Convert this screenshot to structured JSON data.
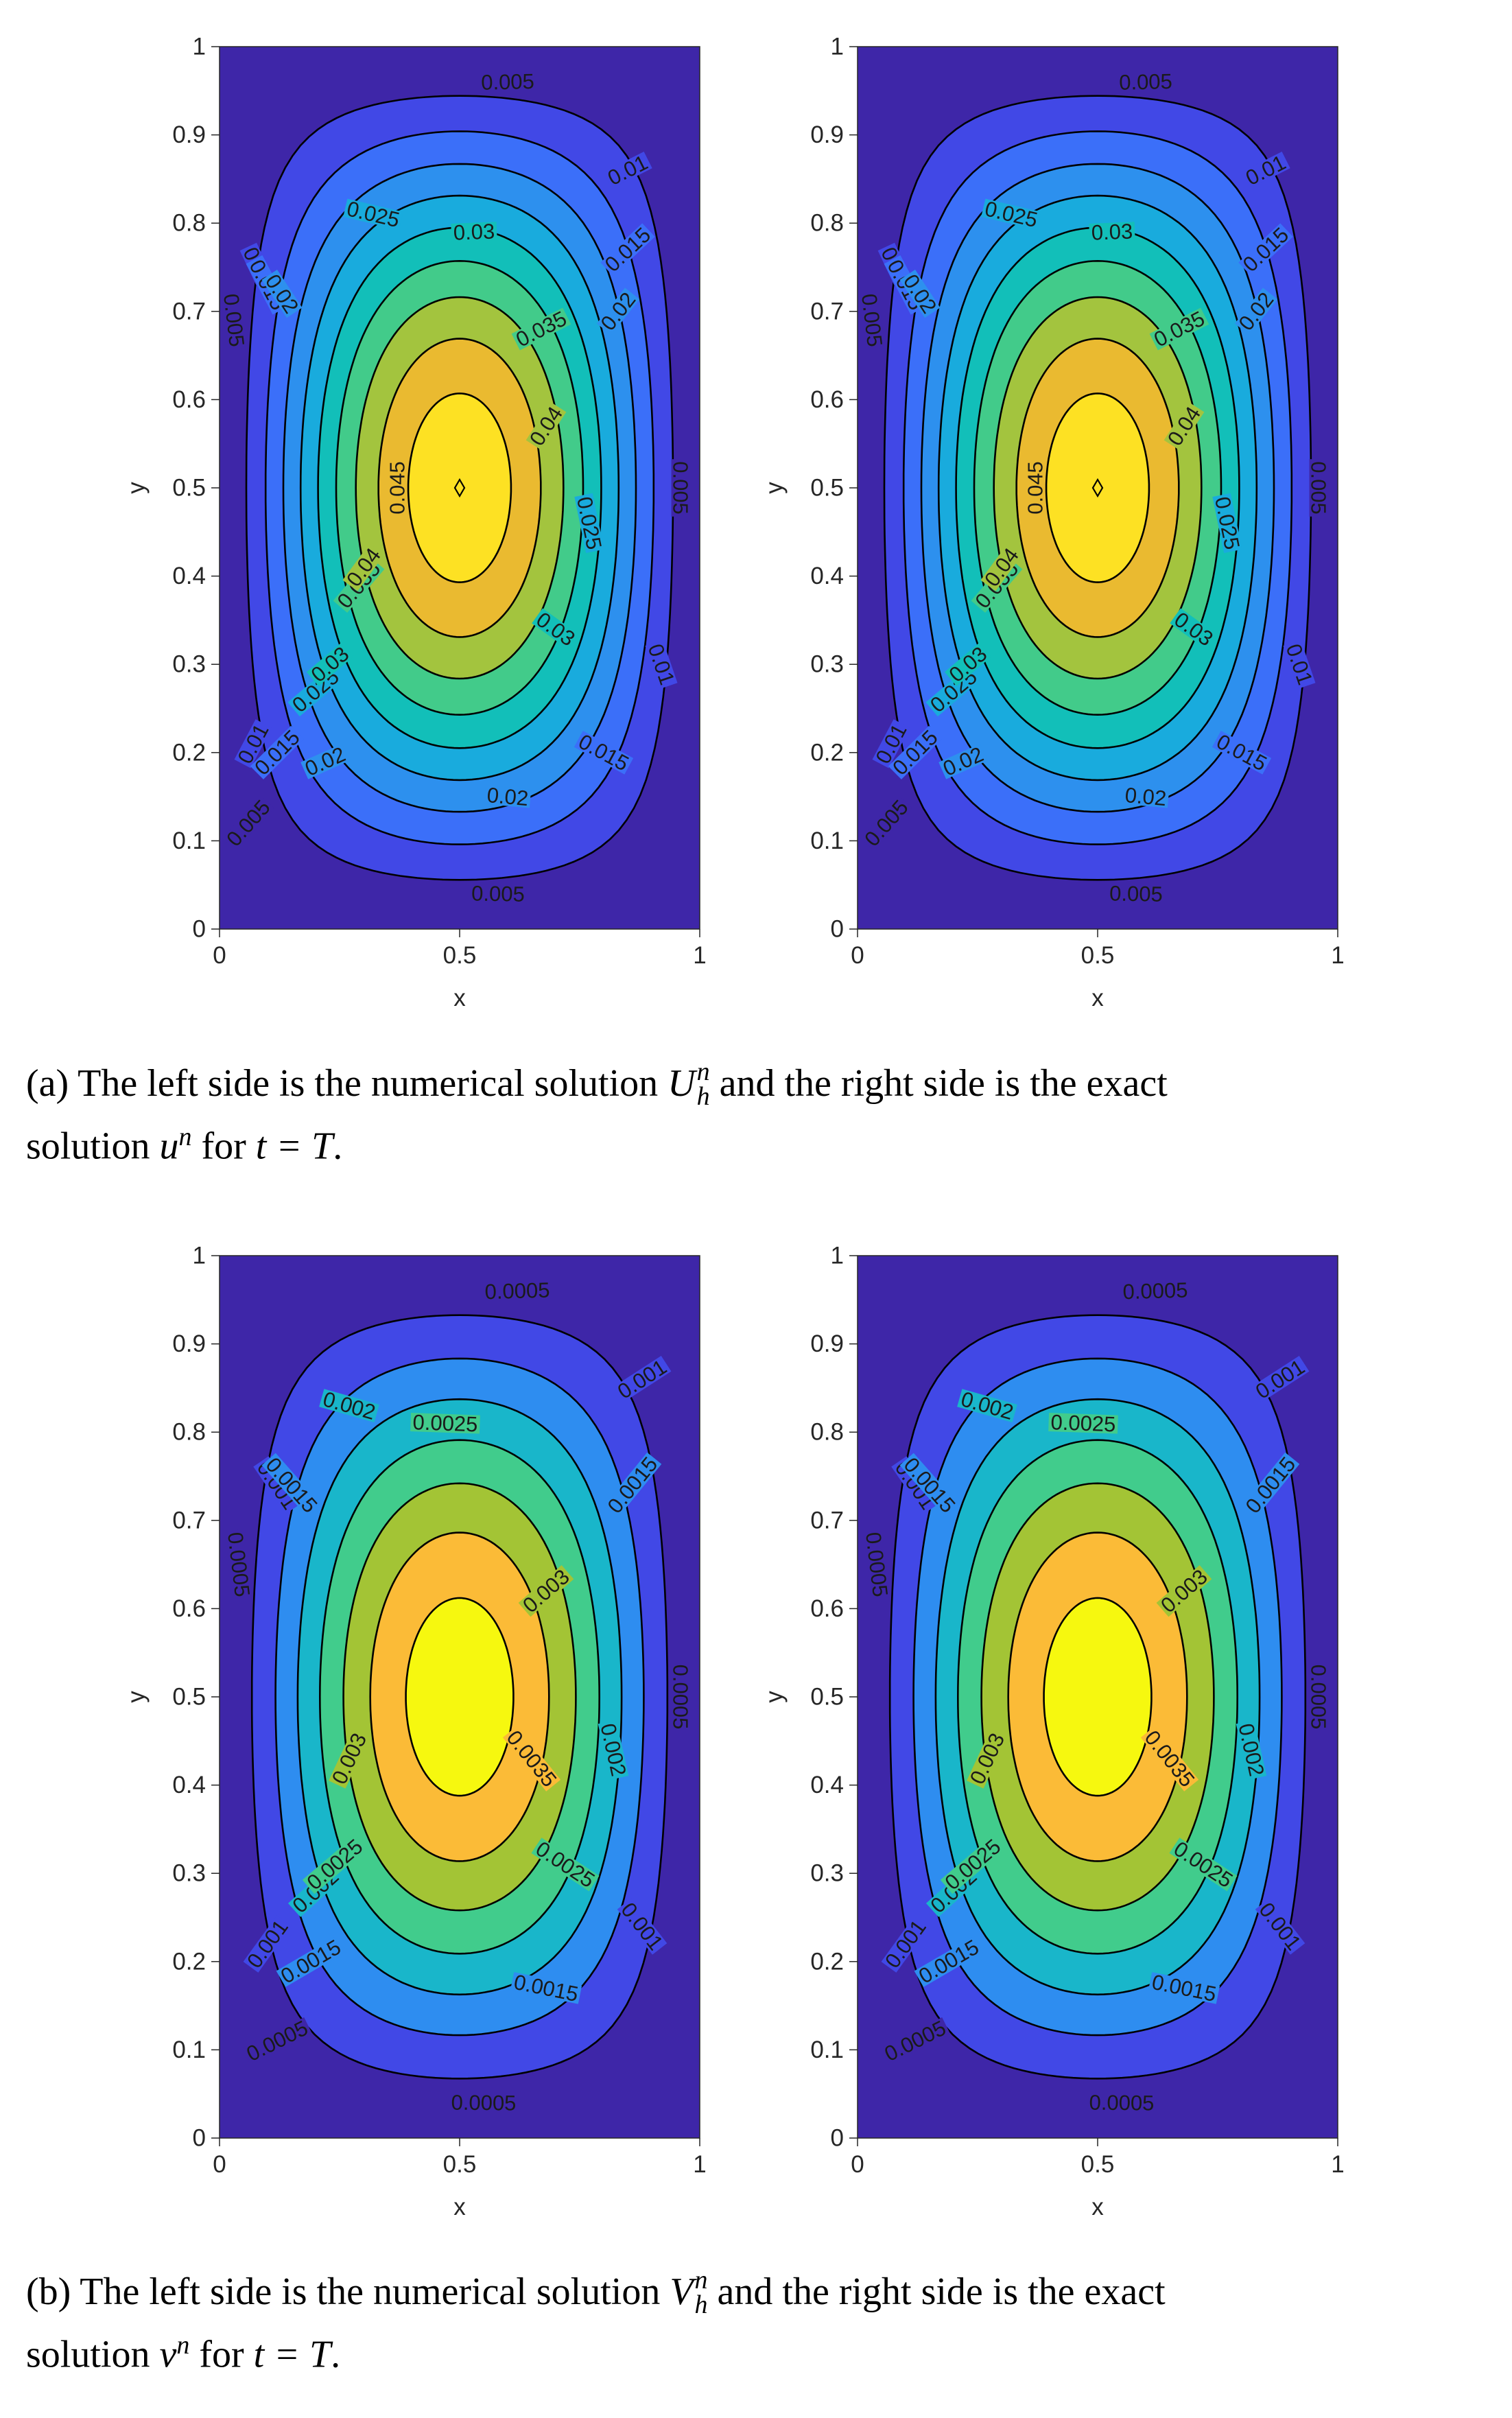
{
  "chart_data": [
    {
      "type": "contour",
      "panel": "a-left",
      "xlabel": "x",
      "ylabel": "y",
      "xlim": [
        0,
        1
      ],
      "ylim": [
        0,
        1
      ],
      "xticks": [
        "0",
        "0.5",
        "1"
      ],
      "yticks": [
        "0",
        "0.1",
        "0.2",
        "0.3",
        "0.4",
        "0.5",
        "0.6",
        "0.7",
        "0.8",
        "0.9",
        "1"
      ],
      "max_value": 0.0485,
      "levels": [
        0.005,
        0.01,
        0.015,
        0.02,
        0.025,
        0.03,
        0.035,
        0.04,
        0.045
      ],
      "level_labels": [
        "0.005",
        "0.01",
        "0.015",
        "0.02",
        "0.025",
        "0.03",
        "0.035",
        "0.04",
        "0.045"
      ],
      "maximum_marker": [
        0.5,
        0.5
      ],
      "grid": false
    },
    {
      "type": "contour",
      "panel": "a-right",
      "xlabel": "x",
      "ylabel": "y",
      "xlim": [
        0,
        1
      ],
      "ylim": [
        0,
        1
      ],
      "xticks": [
        "0",
        "0.5",
        "1"
      ],
      "yticks": [
        "0",
        "0.1",
        "0.2",
        "0.3",
        "0.4",
        "0.5",
        "0.6",
        "0.7",
        "0.8",
        "0.9",
        "1"
      ],
      "max_value": 0.0485,
      "levels": [
        0.005,
        0.01,
        0.015,
        0.02,
        0.025,
        0.03,
        0.035,
        0.04,
        0.045
      ],
      "level_labels": [
        "0.005",
        "0.01",
        "0.015",
        "0.02",
        "0.025",
        "0.03",
        "0.035",
        "0.04",
        "0.045"
      ],
      "maximum_marker": [
        0.5,
        0.5
      ],
      "grid": false
    },
    {
      "type": "contour",
      "panel": "b-left",
      "xlabel": "x",
      "ylabel": "y",
      "xlim": [
        0,
        1
      ],
      "ylim": [
        0,
        1
      ],
      "xticks": [
        "0",
        "0.5",
        "1"
      ],
      "yticks": [
        "0",
        "0.1",
        "0.2",
        "0.3",
        "0.4",
        "0.5",
        "0.6",
        "0.7",
        "0.8",
        "0.9",
        "1"
      ],
      "max_value": 0.0038,
      "levels": [
        0.0005,
        0.001,
        0.0015,
        0.002,
        0.0025,
        0.003,
        0.0035
      ],
      "level_labels": [
        "0.0005",
        "0.001",
        "0.0015",
        "0.002",
        "0.0025",
        "0.003",
        "0.0035"
      ],
      "grid": false
    },
    {
      "type": "contour",
      "panel": "b-right",
      "xlabel": "x",
      "ylabel": "y",
      "xlim": [
        0,
        1
      ],
      "ylim": [
        0,
        1
      ],
      "xticks": [
        "0",
        "0.5",
        "1"
      ],
      "yticks": [
        "0",
        "0.1",
        "0.2",
        "0.3",
        "0.4",
        "0.5",
        "0.6",
        "0.7",
        "0.8",
        "0.9",
        "1"
      ],
      "max_value": 0.0038,
      "levels": [
        0.0005,
        0.001,
        0.0015,
        0.002,
        0.0025,
        0.003,
        0.0035
      ],
      "level_labels": [
        "0.0005",
        "0.001",
        "0.0015",
        "0.002",
        "0.0025",
        "0.003",
        "0.0035"
      ],
      "grid": false
    }
  ],
  "colors": {
    "background_level": "#3e26a8",
    "fills": [
      "#3e26a8",
      "#4148e6",
      "#3b6ff9",
      "#2d90ee",
      "#19abdd",
      "#12bfb9",
      "#42cb8a",
      "#a3c43e",
      "#eaba30",
      "#fde123"
    ],
    "fills_b": [
      "#3e26a8",
      "#4148e6",
      "#2e8df0",
      "#19b6ca",
      "#41cc8c",
      "#a3c435",
      "#fbbb37",
      "#f6f80f"
    ]
  },
  "captions": {
    "a": {
      "prefix": "(a)",
      "t1": "The left side is the numerical solution",
      "sym1": "U",
      "sym1_sup": "n",
      "sym1_sub": "h",
      "t2": "and the right side is the exact",
      "t3": "solution",
      "sym2": "u",
      "sym2_sup": "n",
      "t4": "for",
      "cond": "t = T",
      "end": "."
    },
    "b": {
      "prefix": "(b)",
      "t1": "The left side is the numerical solution",
      "sym1": "V",
      "sym1_sup": "n",
      "sym1_sub": "h",
      "t2": "and the right side is the exact",
      "t3": "solution",
      "sym2": "v",
      "sym2_sup": "n",
      "t4": "for",
      "cond": "t = T",
      "end": "."
    }
  }
}
